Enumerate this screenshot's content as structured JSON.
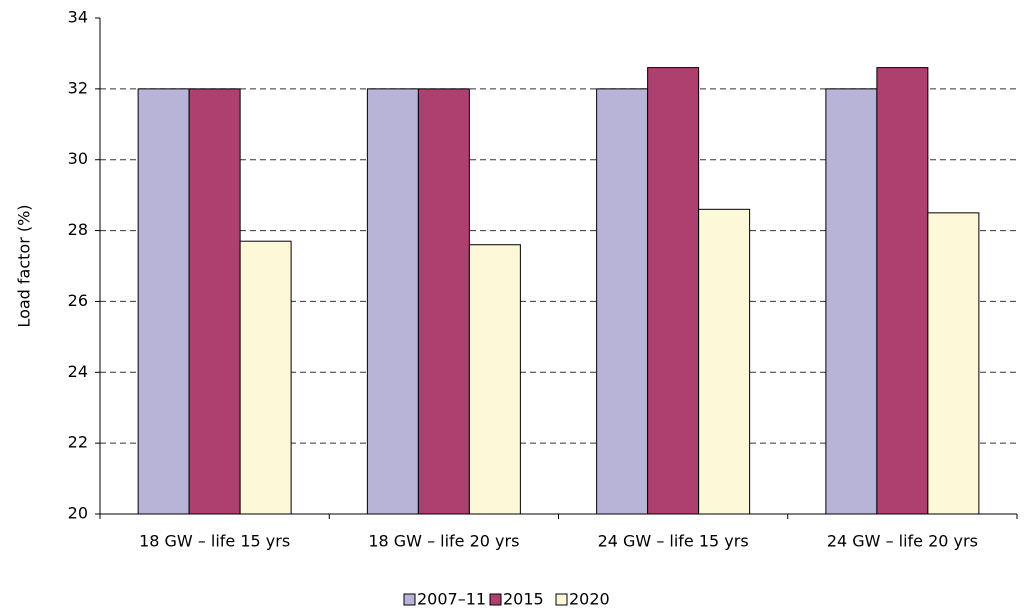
{
  "chart_data": {
    "type": "bar",
    "y_label": "Load factor (%)",
    "categories": [
      "18 GW – life 15 yrs",
      "18 GW – life 20 yrs",
      "24 GW – life 15 yrs",
      "24 GW – life 20 yrs"
    ],
    "series": [
      {
        "name": "2007–11",
        "color": "#b8b4d8",
        "values": [
          32,
          32,
          32,
          32
        ]
      },
      {
        "name": "2015",
        "color": "#ae4070",
        "values": [
          32,
          32,
          32.6,
          32.6
        ]
      },
      {
        "name": "2020",
        "color": "#fdf8d8",
        "values": [
          27.7,
          27.6,
          28.6,
          28.5
        ]
      }
    ],
    "ylim": [
      20,
      34
    ],
    "yticks": [
      20,
      22,
      24,
      26,
      28,
      30,
      32,
      34
    ],
    "grid": true,
    "legend": "bottom"
  }
}
